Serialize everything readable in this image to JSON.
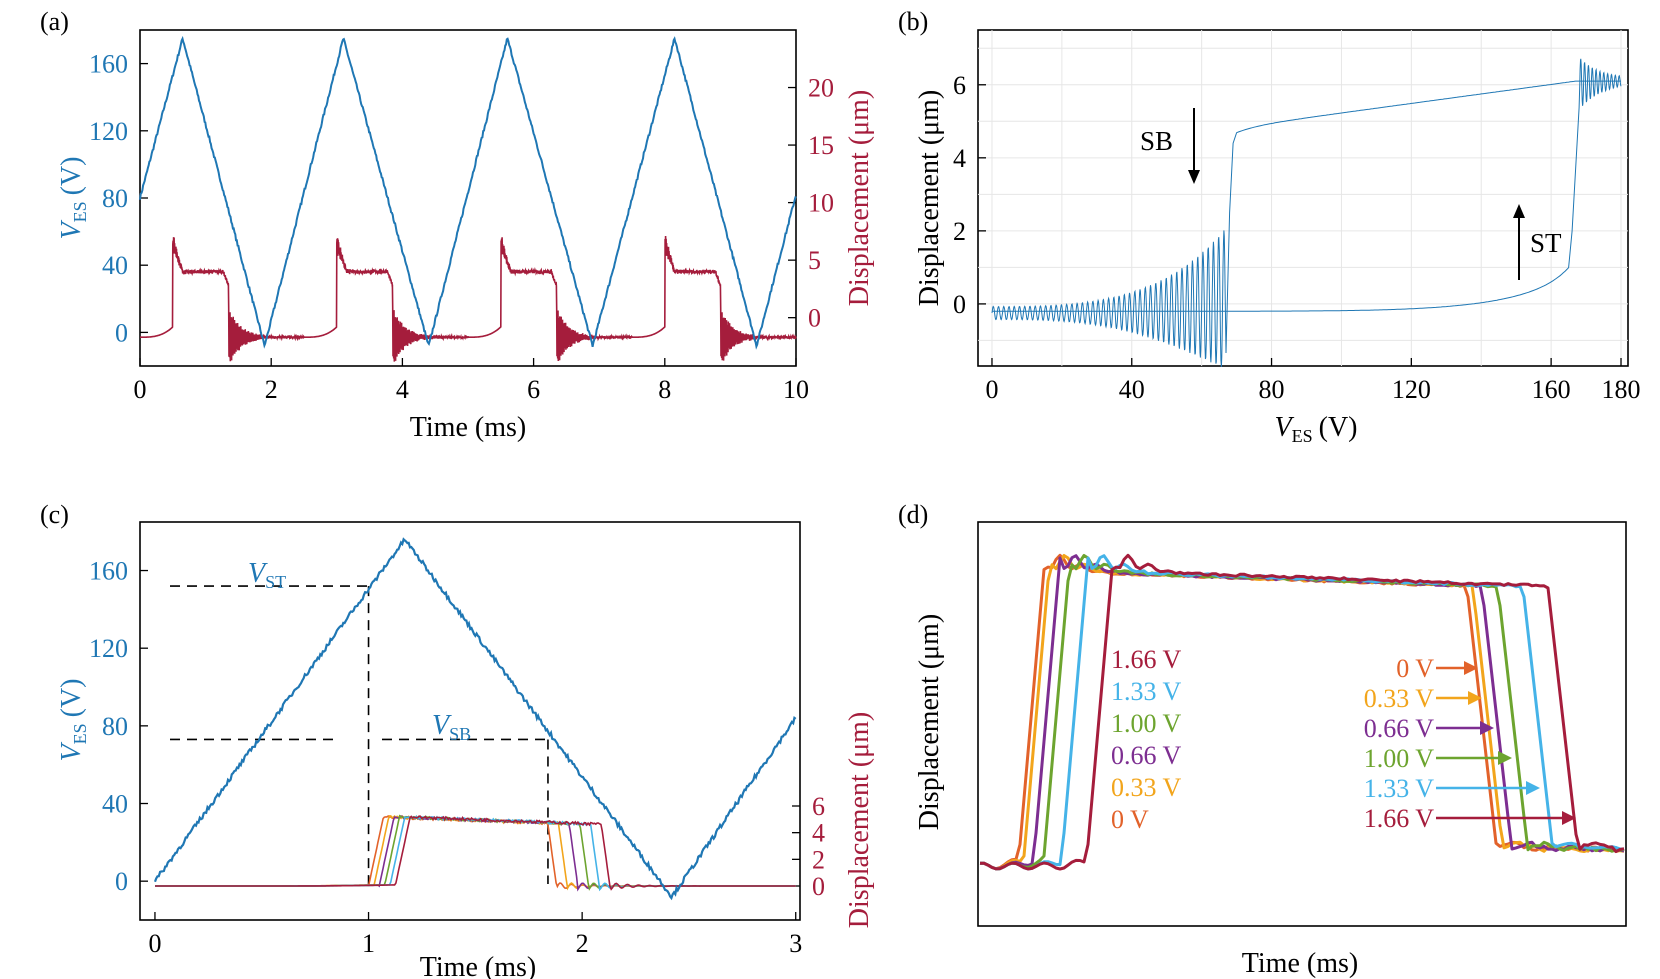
{
  "colors": {
    "blue": "#1f77b4",
    "crimson": "#a51d3c",
    "c0": "#e2622a",
    "c033": "#f2a51c",
    "c066": "#7d2e91",
    "c100": "#6da42f",
    "c133": "#45b3e8",
    "c166": "#a51d3c"
  },
  "chart_data": [
    {
      "panel": "(a)",
      "type": "line",
      "xlabel": "Time (ms)",
      "ylabel_left": "V",
      "ylabel_left_sub": "ES",
      "ylabel_left_unit": "(V)",
      "ylabel_right": "Displacement (μm)",
      "xlim": [
        0,
        10
      ],
      "ylim_left": [
        -20,
        180
      ],
      "ylim_right": [
        -4.2,
        25
      ],
      "xticks": [
        0,
        2,
        4,
        6,
        8,
        10
      ],
      "yticks_left": [
        0,
        40,
        80,
        120,
        160
      ],
      "yticks_right": [
        0,
        5,
        10,
        15,
        20
      ],
      "series": [
        {
          "name": "V_ES",
          "axis": "left",
          "x": [
            0,
            0.65,
            1.9,
            3.1,
            4.4,
            5.6,
            6.9,
            8.15,
            9.4,
            10
          ],
          "y": [
            80,
            175,
            -8,
            175,
            -8,
            175,
            -8,
            175,
            -8,
            82
          ]
        },
        {
          "name": "Displacement",
          "axis": "right",
          "period": 2.5,
          "switch_up": 0.5,
          "switch_down": 1.35,
          "high": 6.3,
          "low": -1.7
        }
      ]
    },
    {
      "panel": "(b)",
      "type": "line",
      "xlabel": "V",
      "xlabel_sub": "ES",
      "xlabel_unit": "(V)",
      "ylabel": "Displacement (μm)",
      "xlim": [
        -4,
        182
      ],
      "ylim": [
        -1.7,
        7.5
      ],
      "xticks": [
        0,
        40,
        80,
        120,
        160,
        180
      ],
      "yticks": [
        0,
        2,
        4,
        6
      ],
      "snap_down_V": 67,
      "snap_through_V": 166,
      "annotations": [
        "SB",
        "ST"
      ]
    },
    {
      "panel": "(c)",
      "type": "line",
      "xlabel": "Time (ms)",
      "ylabel_left": "V",
      "ylabel_left_sub": "ES",
      "ylabel_left_unit": "(V)",
      "ylabel_right": "Displacement (μm)",
      "xlim": [
        -0.07,
        3.02
      ],
      "ylim_left": [
        -20,
        185
      ],
      "xticks": [
        0,
        1,
        2,
        3
      ],
      "yticks_left": [
        0,
        40,
        80,
        120,
        160
      ],
      "yticks_right": [
        0,
        2,
        4,
        6
      ],
      "V_ST": {
        "label": "V",
        "sub": "ST",
        "value": 152,
        "t": 1.0
      },
      "V_SB": {
        "label": "V",
        "sub": "SB",
        "value": 73,
        "t": 1.84
      },
      "voltage": {
        "x": [
          0,
          1.17,
          2.42,
          3.0
        ],
        "y": [
          0,
          176,
          -8,
          84
        ]
      }
    },
    {
      "panel": "(d)",
      "type": "line",
      "xlabel": "Time (ms)",
      "ylabel": "Displacement (μm)",
      "series": [
        {
          "name": "1.66 V",
          "color": "#a51d3c"
        },
        {
          "name": "1.33 V",
          "color": "#45b3e8"
        },
        {
          "name": "1.00 V",
          "color": "#6da42f"
        },
        {
          "name": "0.66 V",
          "color": "#7d2e91"
        },
        {
          "name": "0.33 V",
          "color": "#f2a51c"
        },
        {
          "name": "0 V",
          "color": "#e2622a"
        }
      ]
    }
  ]
}
